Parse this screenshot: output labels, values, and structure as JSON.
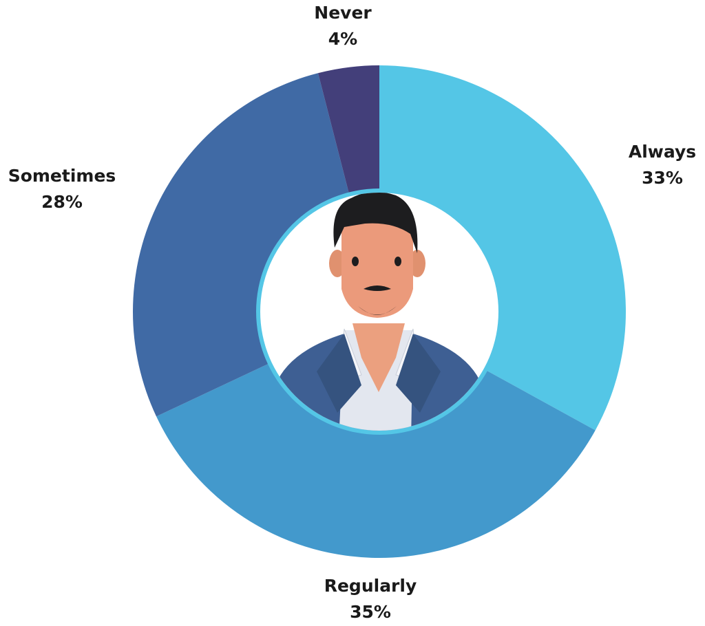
{
  "chart_data": {
    "type": "donut",
    "categories": [
      "Always",
      "Regularly",
      "Sometimes",
      "Never"
    ],
    "values": [
      33,
      35,
      28,
      4
    ],
    "value_labels": [
      "33%",
      "35%",
      "28%",
      "4%"
    ],
    "colors": [
      "#54c6e6",
      "#4399cc",
      "#406aa5",
      "#433f7a"
    ]
  }
}
